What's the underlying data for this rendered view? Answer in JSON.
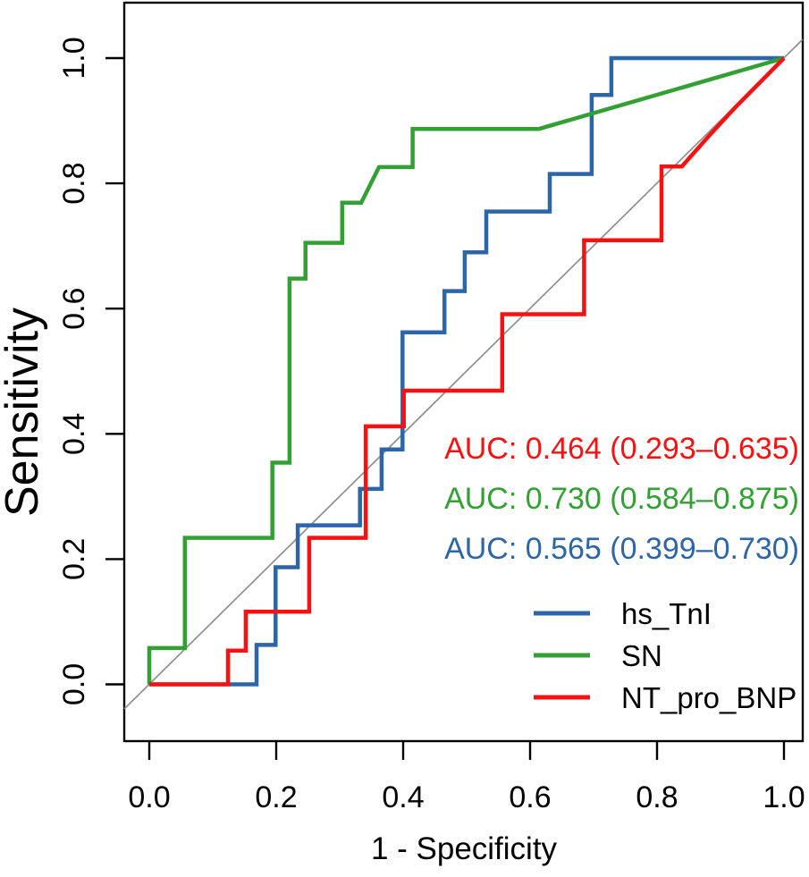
{
  "figure": {
    "kind": "ROC curve comparison plot",
    "axes": {
      "x_title": "1 - Specificity",
      "y_title": "Sensitivity",
      "x_ticks": [
        "0.0",
        "0.2",
        "0.4",
        "0.6",
        "0.8",
        "1.0"
      ],
      "y_ticks": [
        "0.0",
        "0.2",
        "0.4",
        "0.6",
        "0.8",
        "1.0"
      ]
    },
    "colors": {
      "blue": "#2c66a9",
      "green": "#33a033",
      "red": "#f91111",
      "reference": "#8f8f8f",
      "axis": "#000000"
    },
    "annotations": [
      {
        "text": "AUC: 0.464 (0.293–0.635)",
        "color_key": "red"
      },
      {
        "text": "AUC: 0.730 (0.584–0.875)",
        "color_key": "green"
      },
      {
        "text": "AUC: 0.565 (0.399–0.730)",
        "color_key": "blue"
      }
    ],
    "legend": [
      {
        "label": "hs_TnI",
        "color_key": "blue"
      },
      {
        "label": "SN",
        "color_key": "green"
      },
      {
        "label": "NT_pro_BNP",
        "color_key": "red"
      }
    ]
  },
  "chart_data": {
    "type": "line",
    "subtype": "roc_step_curves",
    "title": "",
    "xlabel": "1 - Specificity",
    "ylabel": "Sensitivity",
    "xlim": [
      0,
      1
    ],
    "ylim": [
      0,
      1
    ],
    "grid": false,
    "legend_position": "bottom-right",
    "reference_line": {
      "from": [
        0,
        0
      ],
      "to": [
        1,
        1
      ]
    },
    "series": [
      {
        "name": "hs_TnI",
        "color_key": "blue",
        "color": "#2c66a9",
        "auc": 0.565,
        "auc_ci": [
          0.399,
          0.73
        ],
        "points": [
          [
            0,
            0
          ],
          [
            0.169,
            0
          ],
          [
            0.169,
            0.063
          ],
          [
            0.199,
            0.063
          ],
          [
            0.199,
            0.187
          ],
          [
            0.234,
            0.187
          ],
          [
            0.234,
            0.254
          ],
          [
            0.332,
            0.254
          ],
          [
            0.332,
            0.312
          ],
          [
            0.366,
            0.312
          ],
          [
            0.366,
            0.375
          ],
          [
            0.399,
            0.375
          ],
          [
            0.399,
            0.562
          ],
          [
            0.465,
            0.562
          ],
          [
            0.465,
            0.628
          ],
          [
            0.497,
            0.628
          ],
          [
            0.497,
            0.69
          ],
          [
            0.531,
            0.69
          ],
          [
            0.531,
            0.755
          ],
          [
            0.631,
            0.755
          ],
          [
            0.631,
            0.815
          ],
          [
            0.697,
            0.815
          ],
          [
            0.697,
            0.941
          ],
          [
            0.728,
            0.941
          ],
          [
            0.728,
            1
          ],
          [
            1,
            1
          ]
        ]
      },
      {
        "name": "SN",
        "color_key": "green",
        "color": "#33a033",
        "auc": 0.73,
        "auc_ci": [
          0.584,
          0.875
        ],
        "points": [
          [
            0,
            0
          ],
          [
            0,
            0.058
          ],
          [
            0.056,
            0.058
          ],
          [
            0.056,
            0.234
          ],
          [
            0.194,
            0.234
          ],
          [
            0.194,
            0.354
          ],
          [
            0.221,
            0.354
          ],
          [
            0.221,
            0.648
          ],
          [
            0.246,
            0.648
          ],
          [
            0.246,
            0.705
          ],
          [
            0.304,
            0.705
          ],
          [
            0.304,
            0.769
          ],
          [
            0.334,
            0.769
          ],
          [
            0.362,
            0.826
          ],
          [
            0.415,
            0.826
          ],
          [
            0.415,
            0.887
          ],
          [
            0.614,
            0.887
          ],
          [
            1,
            1
          ]
        ]
      },
      {
        "name": "NT_pro_BNP",
        "color_key": "red",
        "color": "#f91111",
        "auc": 0.464,
        "auc_ci": [
          0.293,
          0.635
        ],
        "points": [
          [
            0,
            0
          ],
          [
            0.124,
            0
          ],
          [
            0.124,
            0.054
          ],
          [
            0.152,
            0.054
          ],
          [
            0.152,
            0.116
          ],
          [
            0.252,
            0.116
          ],
          [
            0.252,
            0.234
          ],
          [
            0.341,
            0.234
          ],
          [
            0.341,
            0.412
          ],
          [
            0.401,
            0.412
          ],
          [
            0.401,
            0.469
          ],
          [
            0.556,
            0.469
          ],
          [
            0.556,
            0.591
          ],
          [
            0.685,
            0.591
          ],
          [
            0.685,
            0.709
          ],
          [
            0.807,
            0.709
          ],
          [
            0.807,
            0.827
          ],
          [
            0.839,
            0.827
          ],
          [
            0.882,
            0.876
          ],
          [
            0.923,
            0.921
          ],
          [
            1,
            1
          ]
        ]
      }
    ]
  }
}
